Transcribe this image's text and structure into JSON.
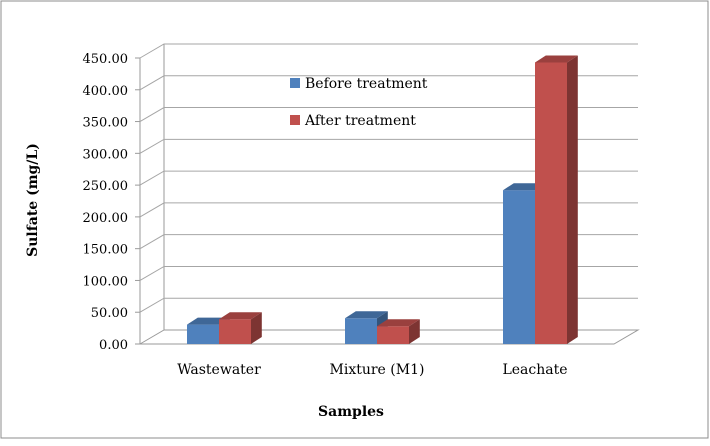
{
  "chart_data": {
    "type": "bar",
    "categories": [
      "Wastewater",
      "Mixture (M1)",
      "Leachate"
    ],
    "series": [
      {
        "name": "Before treatment",
        "values": [
          30.5,
          40.5,
          242.0
        ]
      },
      {
        "name": "After treatment",
        "values": [
          39.0,
          28.0,
          443.0
        ]
      }
    ],
    "xlabel": "Samples",
    "ylabel": "Sulfate (mg/L)",
    "ylim": [
      0,
      450
    ],
    "yticks": [
      "0.00",
      "50.00",
      "100.00",
      "150.00",
      "200.00",
      "250.00",
      "300.00",
      "350.00",
      "400.00",
      "450.00"
    ],
    "grid": true,
    "legend_position": "top-center",
    "colors": {
      "Before treatment": "#4f81bd",
      "After treatment": "#c0504d"
    }
  }
}
